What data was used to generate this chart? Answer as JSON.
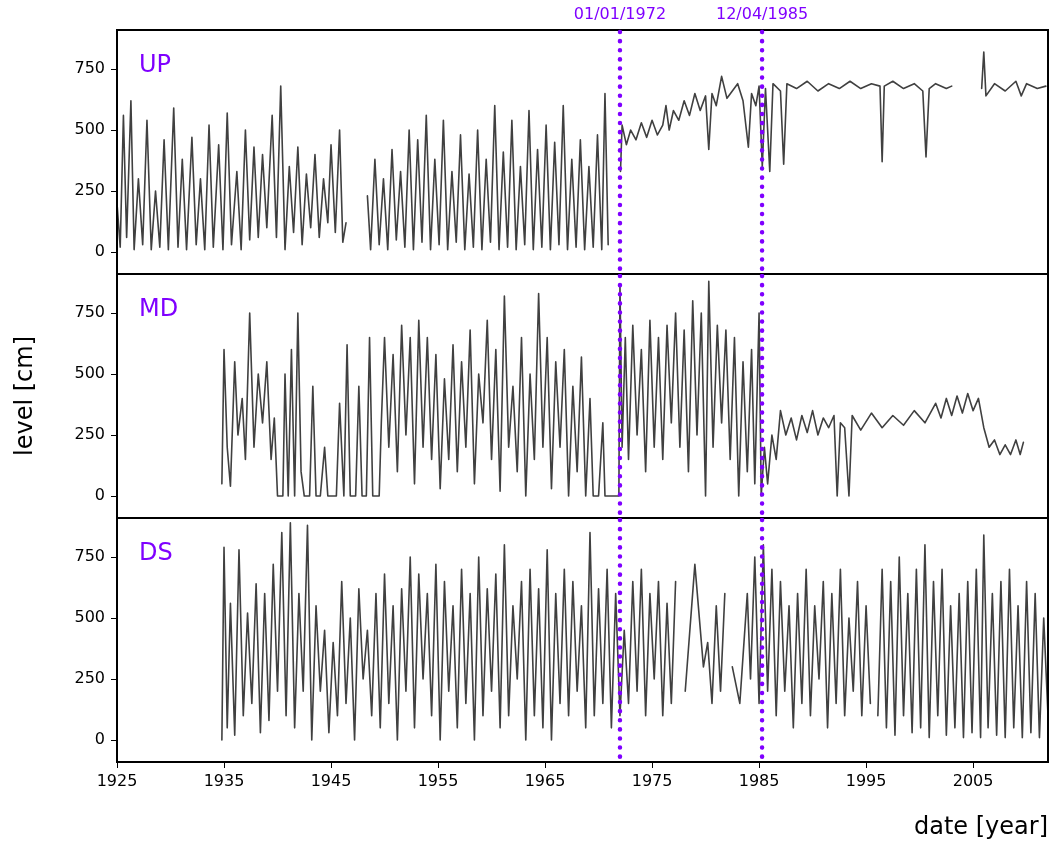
{
  "chart_data": [
    {
      "type": "line",
      "annotations": [
        "UP"
      ],
      "xlim": [
        1925,
        2012
      ],
      "xticks": [
        1925,
        1935,
        1945,
        1955,
        1965,
        1975,
        1985,
        1995,
        2005
      ],
      "ylim": [
        -90,
        910
      ],
      "yticks": [
        0,
        250,
        500,
        750
      ],
      "tick_labels": "y",
      "ref_lines": [
        {
          "axis": "x",
          "value": 1972.0,
          "label": "01/01/1972",
          "color": "#7f00ff",
          "line_style": "dotted"
        },
        {
          "axis": "x",
          "value": 1985.28,
          "label": "12/04/1985",
          "color": "#7f00ff",
          "line_style": "dotted"
        }
      ],
      "series": [
        {
          "color": "#404040",
          "x": [
            1925.0,
            1925.3,
            1925.6,
            1925.9,
            1926.3,
            1926.6,
            1927.0,
            1927.4,
            1927.8,
            1928.2,
            1928.6,
            1929.0,
            1929.4,
            1929.8,
            1930.3,
            1930.7,
            1931.1,
            1931.5,
            1932.0,
            1932.4,
            1932.8,
            1933.2,
            1933.6,
            1934.0,
            1934.5,
            1934.9,
            1935.3,
            1935.7,
            1936.2,
            1936.6,
            1937.0,
            1937.4,
            1937.8,
            1938.2,
            1938.6,
            1939.0,
            1939.5,
            1939.9,
            1940.3,
            1940.7,
            1941.1,
            1941.5,
            1941.9,
            1942.3,
            1942.7,
            1943.1,
            1943.5,
            1943.9,
            1944.3,
            1944.7,
            1945.0,
            1945.4,
            1945.8,
            1946.1,
            1946.4,
            1946.6,
            1948.4,
            1948.7,
            1949.1,
            1949.5,
            1949.9,
            1950.3,
            1950.7,
            1951.1,
            1951.5,
            1951.9,
            1952.3,
            1952.7,
            1953.1,
            1953.5,
            1953.9,
            1954.3,
            1954.7,
            1955.1,
            1955.5,
            1955.9,
            1956.3,
            1956.7,
            1957.1,
            1957.5,
            1957.9,
            1958.3,
            1958.7,
            1959.1,
            1959.5,
            1959.9,
            1960.3,
            1960.7,
            1961.1,
            1961.5,
            1961.9,
            1962.3,
            1962.7,
            1963.1,
            1963.5,
            1963.9,
            1964.3,
            1964.7,
            1965.1,
            1965.5,
            1965.9,
            1966.3,
            1966.7,
            1967.1,
            1967.5,
            1967.9,
            1968.3,
            1968.7,
            1969.1,
            1969.5,
            1969.9,
            1970.3,
            1970.6,
            1970.9,
            1971.5,
            1972.05,
            1972.2,
            1972.6,
            1973.0,
            1973.5,
            1974.0,
            1974.5,
            1975.0,
            1975.5,
            1976.0,
            1976.3,
            1976.6,
            1977.0,
            1977.5,
            1978.0,
            1978.5,
            1979.0,
            1979.5,
            1980.0,
            1980.3,
            1980.6,
            1981.0,
            1981.5,
            1982.0,
            1982.5,
            1983.0,
            1983.5,
            1984.0,
            1984.3,
            1984.7,
            1985.0,
            1985.3,
            1985.6,
            1986.0,
            1986.3,
            1987.0,
            1987.3,
            1987.6,
            1988.5,
            1989.5,
            1990.5,
            1991.5,
            1992.5,
            1993.5,
            1994.5,
            1995.5,
            1996.3,
            1996.5,
            1996.7,
            1997.5,
            1998.5,
            1999.5,
            2000.3,
            2000.6,
            2000.9,
            2001.5,
            2002.5,
            2003.0,
            2004.4,
            2005.8,
            2006.0,
            2006.2,
            2007.0,
            2008.0,
            2009.0,
            2009.5,
            2010.0,
            2011.0,
            2011.8
          ],
          "values": [
            200,
            20,
            560,
            60,
            620,
            10,
            300,
            30,
            540,
            10,
            250,
            20,
            460,
            10,
            590,
            20,
            380,
            10,
            470,
            30,
            300,
            10,
            520,
            20,
            440,
            10,
            570,
            30,
            330,
            10,
            500,
            50,
            430,
            60,
            400,
            100,
            560,
            60,
            680,
            10,
            350,
            80,
            430,
            30,
            320,
            100,
            400,
            60,
            300,
            120,
            440,
            80,
            500,
            40,
            120,
            null,
            230,
            10,
            380,
            30,
            300,
            10,
            420,
            50,
            330,
            20,
            500,
            10,
            460,
            40,
            560,
            10,
            380,
            30,
            540,
            10,
            330,
            40,
            480,
            10,
            320,
            20,
            500,
            10,
            380,
            40,
            600,
            10,
            410,
            20,
            540,
            10,
            350,
            30,
            580,
            10,
            420,
            20,
            520,
            10,
            450,
            30,
            600,
            10,
            380,
            20,
            460,
            10,
            350,
            20,
            480,
            10,
            650,
            30,
            null,
            330,
            520,
            440,
            500,
            460,
            530,
            470,
            540,
            480,
            520,
            600,
            500,
            580,
            540,
            620,
            560,
            650,
            580,
            640,
            420,
            650,
            600,
            720,
            630,
            660,
            690,
            620,
            430,
            650,
            600,
            680,
            350,
            670,
            330,
            690,
            660,
            360,
            690,
            670,
            700,
            660,
            690,
            670,
            700,
            670,
            690,
            680,
            370,
            680,
            700,
            670,
            690,
            660,
            390,
            670,
            690,
            670,
            680,
            null,
            670,
            820,
            640,
            690,
            660,
            700,
            640,
            690,
            670,
            680
          ]
        }
      ]
    },
    {
      "type": "line",
      "annotations": [
        "MD"
      ],
      "ylabel": "level [cm]",
      "xlim": [
        1925,
        2012
      ],
      "xticks": [
        1925,
        1935,
        1945,
        1955,
        1965,
        1975,
        1985,
        1995,
        2005
      ],
      "ylim": [
        -90,
        910
      ],
      "yticks": [
        0,
        250,
        500,
        750
      ],
      "tick_labels": "y",
      "ref_lines": [
        {
          "axis": "x",
          "value": 1972.0,
          "color": "#7f00ff",
          "line_style": "dotted"
        },
        {
          "axis": "x",
          "value": 1985.28,
          "color": "#7f00ff",
          "line_style": "dotted"
        }
      ],
      "series": [
        {
          "color": "#404040",
          "x": [
            1934.8,
            1935.0,
            1935.3,
            1935.6,
            1936.0,
            1936.3,
            1936.7,
            1937.0,
            1937.4,
            1937.8,
            1938.2,
            1938.6,
            1939.0,
            1939.4,
            1939.7,
            1940.0,
            1940.5,
            1940.7,
            1941.0,
            1941.3,
            1941.6,
            1941.9,
            1942.2,
            1942.5,
            1943.0,
            1943.3,
            1943.6,
            1944.0,
            1944.4,
            1944.7,
            1945.5,
            1945.8,
            1946.2,
            1946.5,
            1946.8,
            1947.3,
            1947.6,
            1947.9,
            1948.3,
            1948.6,
            1948.9,
            1949.5,
            1949.7,
            1950.0,
            1950.4,
            1950.8,
            1951.2,
            1951.6,
            1952.0,
            1952.4,
            1952.8,
            1953.2,
            1953.6,
            1954.0,
            1954.4,
            1954.8,
            1955.2,
            1955.6,
            1956.0,
            1956.4,
            1956.8,
            1957.2,
            1957.6,
            1958.0,
            1958.4,
            1958.8,
            1959.2,
            1959.6,
            1960.0,
            1960.4,
            1960.8,
            1961.2,
            1961.6,
            1962.0,
            1962.4,
            1962.8,
            1963.2,
            1963.6,
            1964.0,
            1964.4,
            1964.8,
            1965.2,
            1965.6,
            1966.0,
            1966.4,
            1966.8,
            1967.2,
            1967.6,
            1968.0,
            1968.4,
            1968.8,
            1969.2,
            1969.5,
            1970.0,
            1970.4,
            1970.6,
            1971.9,
            1972.0,
            1972.2,
            1972.5,
            1972.8,
            1973.2,
            1973.6,
            1974.0,
            1974.4,
            1974.8,
            1975.2,
            1975.6,
            1976.0,
            1976.4,
            1976.8,
            1977.2,
            1977.6,
            1978.0,
            1978.4,
            1978.8,
            1979.2,
            1979.6,
            1980.0,
            1980.3,
            1980.7,
            1981.1,
            1981.5,
            1981.9,
            1982.3,
            1982.7,
            1983.1,
            1983.5,
            1983.9,
            1984.3,
            1984.6,
            1985.0,
            1985.2,
            1985.5,
            1985.8,
            1986.2,
            1986.6,
            1987.0,
            1987.5,
            1988.0,
            1988.5,
            1989.0,
            1989.5,
            1990.0,
            1990.5,
            1991.0,
            1991.5,
            1992.0,
            1992.3,
            1992.6,
            1993.0,
            1993.4,
            1993.7,
            1994.5,
            1995.5,
            1996.5,
            1997.5,
            1998.5,
            1999.5,
            2000.5,
            2001.5,
            2002.0,
            2002.5,
            2003.0,
            2003.5,
            2004.0,
            2004.5,
            2005.0,
            2005.5,
            2006.0,
            2006.5,
            2007.0,
            2007.5,
            2008.0,
            2008.5,
            2009.0,
            2009.4,
            2009.7
          ],
          "values": [
            50,
            600,
            200,
            40,
            550,
            250,
            400,
            150,
            750,
            200,
            500,
            300,
            550,
            150,
            320,
            0,
            0,
            500,
            0,
            600,
            0,
            750,
            100,
            0,
            0,
            450,
            0,
            0,
            200,
            0,
            0,
            380,
            0,
            620,
            0,
            0,
            450,
            0,
            0,
            650,
            0,
            0,
            300,
            650,
            200,
            580,
            100,
            700,
            250,
            650,
            50,
            720,
            200,
            650,
            150,
            580,
            30,
            480,
            150,
            620,
            100,
            550,
            200,
            680,
            50,
            500,
            300,
            720,
            150,
            600,
            20,
            820,
            200,
            450,
            100,
            650,
            0,
            500,
            150,
            830,
            200,
            650,
            30,
            550,
            200,
            600,
            0,
            450,
            100,
            570,
            0,
            400,
            0,
            0,
            300,
            0,
            0,
            870,
            200,
            650,
            150,
            700,
            250,
            600,
            100,
            720,
            200,
            650,
            150,
            700,
            300,
            750,
            200,
            680,
            100,
            800,
            250,
            750,
            0,
            880,
            200,
            700,
            300,
            680,
            150,
            650,
            0,
            550,
            100,
            600,
            50,
            750,
            0,
            200,
            50,
            250,
            150,
            350,
            250,
            320,
            230,
            330,
            260,
            350,
            250,
            320,
            280,
            330,
            0,
            300,
            280,
            0,
            330,
            270,
            340,
            280,
            330,
            290,
            350,
            300,
            380,
            320,
            400,
            330,
            410,
            340,
            420,
            350,
            400,
            280,
            200,
            230,
            170,
            210,
            170,
            230,
            170,
            220
          ]
        }
      ]
    },
    {
      "type": "line",
      "annotations": [
        "DS"
      ],
      "xlabel": "date [year]",
      "xlim": [
        1925,
        2012
      ],
      "xticks": [
        1925,
        1935,
        1945,
        1955,
        1965,
        1975,
        1985,
        1995,
        2005
      ],
      "ylim": [
        -90,
        910
      ],
      "yticks": [
        0,
        250,
        500,
        750
      ],
      "ref_lines": [
        {
          "axis": "x",
          "value": 1972.0,
          "color": "#7f00ff",
          "line_style": "dotted"
        },
        {
          "axis": "x",
          "value": 1985.28,
          "color": "#7f00ff",
          "line_style": "dotted"
        }
      ],
      "series": [
        {
          "color": "#404040",
          "x": [
            1934.8,
            1935.0,
            1935.3,
            1935.6,
            1936.0,
            1936.4,
            1936.8,
            1937.2,
            1937.6,
            1938.0,
            1938.4,
            1938.8,
            1939.2,
            1939.6,
            1940.0,
            1940.4,
            1940.8,
            1941.2,
            1941.6,
            1942.0,
            1942.4,
            1942.8,
            1943.2,
            1943.6,
            1944.0,
            1944.4,
            1944.8,
            1945.2,
            1945.6,
            1946.0,
            1946.4,
            1946.8,
            1947.2,
            1947.6,
            1948.0,
            1948.4,
            1948.8,
            1949.2,
            1949.6,
            1950.0,
            1950.4,
            1950.8,
            1951.2,
            1951.6,
            1952.0,
            1952.4,
            1952.8,
            1953.2,
            1953.6,
            1954.0,
            1954.4,
            1954.8,
            1955.2,
            1955.6,
            1956.0,
            1956.4,
            1956.8,
            1957.2,
            1957.6,
            1958.0,
            1958.4,
            1958.8,
            1959.2,
            1959.6,
            1960.0,
            1960.4,
            1960.8,
            1961.2,
            1961.6,
            1962.0,
            1962.4,
            1962.8,
            1963.2,
            1963.6,
            1964.0,
            1964.4,
            1964.8,
            1965.2,
            1965.6,
            1966.0,
            1966.4,
            1966.8,
            1967.2,
            1967.6,
            1968.0,
            1968.4,
            1968.8,
            1969.2,
            1969.6,
            1970.0,
            1970.4,
            1970.8,
            1971.2,
            1971.6,
            1972.0,
            1972.4,
            1972.8,
            1973.2,
            1973.6,
            1974.0,
            1974.4,
            1974.8,
            1975.2,
            1975.6,
            1976.0,
            1976.4,
            1976.8,
            1977.2,
            1977.6,
            1978.1,
            1979.0,
            1979.8,
            1980.2,
            1980.6,
            1981.0,
            1981.4,
            1981.8,
            1982.2,
            1982.5,
            1983.2,
            1983.9,
            1984.2,
            1984.6,
            1985.0,
            1985.4,
            1985.8,
            1986.2,
            1986.6,
            1987.0,
            1987.4,
            1987.8,
            1988.2,
            1988.6,
            1989.0,
            1989.4,
            1989.8,
            1990.2,
            1990.6,
            1991.0,
            1991.4,
            1991.8,
            1992.2,
            1992.6,
            1993.0,
            1993.4,
            1993.8,
            1994.2,
            1994.6,
            1995.0,
            1995.4,
            1995.7,
            1996.1,
            1996.5,
            1996.9,
            1997.3,
            1997.7,
            1998.1,
            1998.5,
            1998.9,
            1999.3,
            1999.7,
            2000.1,
            2000.5,
            2000.9,
            2001.3,
            2001.7,
            2002.1,
            2002.5,
            2002.9,
            2003.3,
            2003.7,
            2004.1,
            2004.5,
            2004.9,
            2005.3,
            2005.7,
            2006.0,
            2006.4,
            2006.8,
            2007.2,
            2007.6,
            2008.0,
            2008.4,
            2008.8,
            2009.2,
            2009.6,
            2010.0,
            2010.4,
            2010.8,
            2011.2,
            2011.6,
            2012.0
          ],
          "values": [
            0,
            790,
            50,
            560,
            20,
            780,
            100,
            520,
            150,
            640,
            30,
            600,
            80,
            720,
            200,
            850,
            100,
            890,
            50,
            600,
            200,
            880,
            0,
            550,
            200,
            450,
            30,
            400,
            100,
            650,
            150,
            500,
            0,
            620,
            250,
            450,
            100,
            600,
            50,
            680,
            150,
            550,
            0,
            620,
            200,
            750,
            50,
            680,
            250,
            600,
            100,
            720,
            0,
            650,
            200,
            550,
            50,
            700,
            150,
            600,
            0,
            750,
            100,
            620,
            200,
            680,
            50,
            800,
            100,
            550,
            250,
            650,
            0,
            700,
            100,
            620,
            50,
            780,
            0,
            600,
            150,
            700,
            100,
            650,
            200,
            550,
            50,
            850,
            100,
            620,
            150,
            700,
            50,
            600,
            100,
            450,
            150,
            650,
            200,
            700,
            100,
            600,
            250,
            650,
            100,
            560,
            150,
            650,
            null,
            200,
            720,
            300,
            400,
            150,
            550,
            200,
            600,
            null,
            300,
            150,
            600,
            250,
            750,
            150,
            800,
            200,
            700,
            100,
            650,
            200,
            550,
            50,
            600,
            150,
            700,
            100,
            550,
            250,
            650,
            50,
            600,
            150,
            700,
            100,
            500,
            200,
            650,
            100,
            550,
            150,
            null,
            100,
            700,
            50,
            650,
            20,
            750,
            100,
            600,
            30,
            700,
            50,
            800,
            10,
            650,
            100,
            700,
            20,
            550,
            50,
            600,
            10,
            650,
            30,
            700,
            10,
            840,
            50,
            600,
            20,
            650,
            10,
            700,
            50,
            550,
            10,
            650,
            30,
            600,
            10,
            500,
            100
          ]
        }
      ]
    }
  ]
}
